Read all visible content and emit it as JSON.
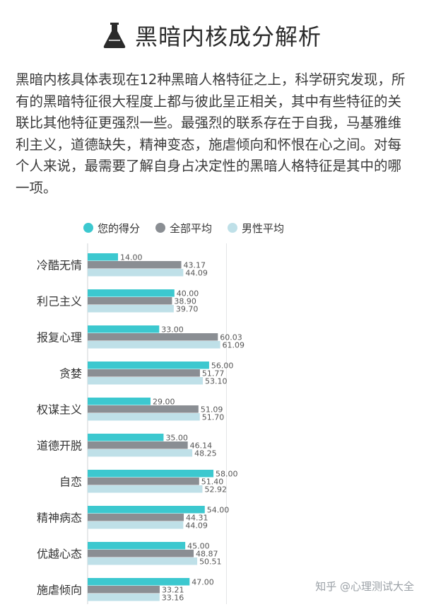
{
  "page": {
    "title": "黑暗内核成分解析",
    "description": "黑暗内核具体表现在12种黑暗人格特征之上，科学研究发现，所有的黑暗特征很大程度上都与彼此呈正相关，其中有些特征的关联比其他特征更强烈一些。最强烈的联系存在于自我，马基雅维利主义，道德缺失，精神变态，施虐倾向和怀恨在心之间。对每个人来说，最需要了解自身占决定性的黑暗人格特征是其中的哪一项。",
    "watermark": "知乎 @心理测试大全"
  },
  "colors": {
    "your_score": "#3cc8cf",
    "overall_avg": "#8a8e93",
    "male_avg": "#bfe0e8"
  },
  "chart_data": {
    "type": "bar",
    "orientation": "horizontal",
    "categories": [
      "冷酷无情",
      "利己主义",
      "报复心理",
      "贪婪",
      "权谋主义",
      "道德开脱",
      "自恋",
      "精神病态",
      "优越心态",
      "施虐倾向"
    ],
    "series": [
      {
        "name": "您的得分",
        "values": [
          14.0,
          40.0,
          33.0,
          56.0,
          29.0,
          35.0,
          58.0,
          54.0,
          45.0,
          47.0
        ]
      },
      {
        "name": "全部平均",
        "values": [
          43.17,
          38.9,
          60.03,
          51.77,
          51.09,
          46.14,
          51.4,
          44.31,
          48.87,
          33.21
        ]
      },
      {
        "name": "男性平均",
        "values": [
          44.09,
          39.7,
          61.09,
          53.1,
          51.7,
          48.25,
          52.92,
          44.09,
          50.51,
          33.16
        ]
      }
    ],
    "value_labels": [
      [
        "14.00",
        "40.00",
        "33.00",
        "56.00",
        "29.00",
        "35.00",
        "58.00",
        "54.00",
        "45.00",
        "47.00"
      ],
      [
        "43.17",
        "38.90",
        "60.03",
        "51.77",
        "51.09",
        "46.14",
        "51.40",
        "44.31",
        "48.87",
        "33.21"
      ],
      [
        "44.09",
        "39.70",
        "61.09",
        "53.10",
        "51.70",
        "48.25",
        "52.92",
        "44.09",
        "50.51",
        "33.16"
      ]
    ],
    "xlim": [
      0,
      100
    ],
    "legend_placement": "top",
    "grid": false
  }
}
